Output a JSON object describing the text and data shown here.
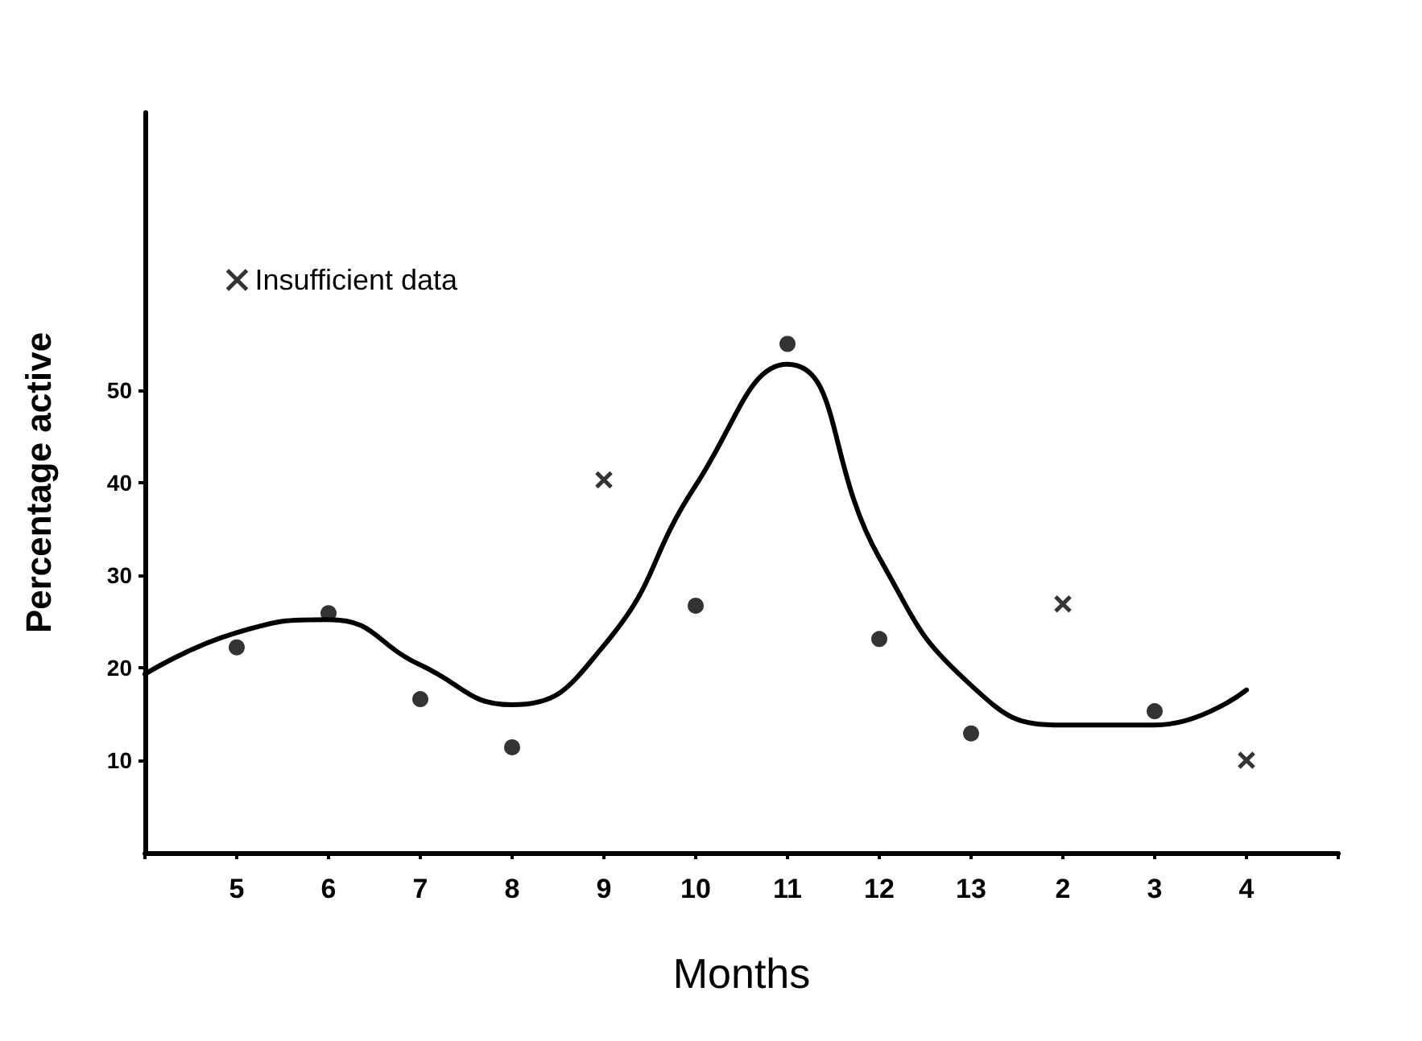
{
  "chart_data": {
    "type": "scatter",
    "xlabel": "Months",
    "ylabel": "Percentage active",
    "categories": [
      null,
      "5",
      "6",
      "7",
      "8",
      "9",
      "10",
      "11",
      "12",
      "13",
      "2",
      "3",
      "4",
      null
    ],
    "ylim": [
      0,
      80
    ],
    "yticks": [
      10,
      20,
      30,
      40,
      50
    ],
    "grid": false,
    "legend": "top left",
    "series": [
      {
        "type": "line",
        "color": "#000000",
        "marker": "none",
        "line_style": "solid",
        "values": [
          19.3,
          23.8,
          25.2,
          20.3,
          16.0,
          22.4,
          39.7,
          52.8,
          31.9,
          18.1,
          13.8,
          13.8,
          17.6,
          null
        ]
      },
      {
        "color": "#000000",
        "marker": "circle",
        "values": [
          null,
          22.2,
          25.9,
          16.6,
          11.4,
          null,
          26.7,
          55,
          23.1,
          12.9,
          null,
          15.3,
          null,
          null
        ]
      },
      {
        "name": "Insufficient data",
        "color": "#000000",
        "marker": "cross",
        "values": [
          null,
          null,
          null,
          null,
          null,
          40.3,
          null,
          null,
          null,
          null,
          26.9,
          null,
          10,
          null
        ]
      }
    ]
  }
}
